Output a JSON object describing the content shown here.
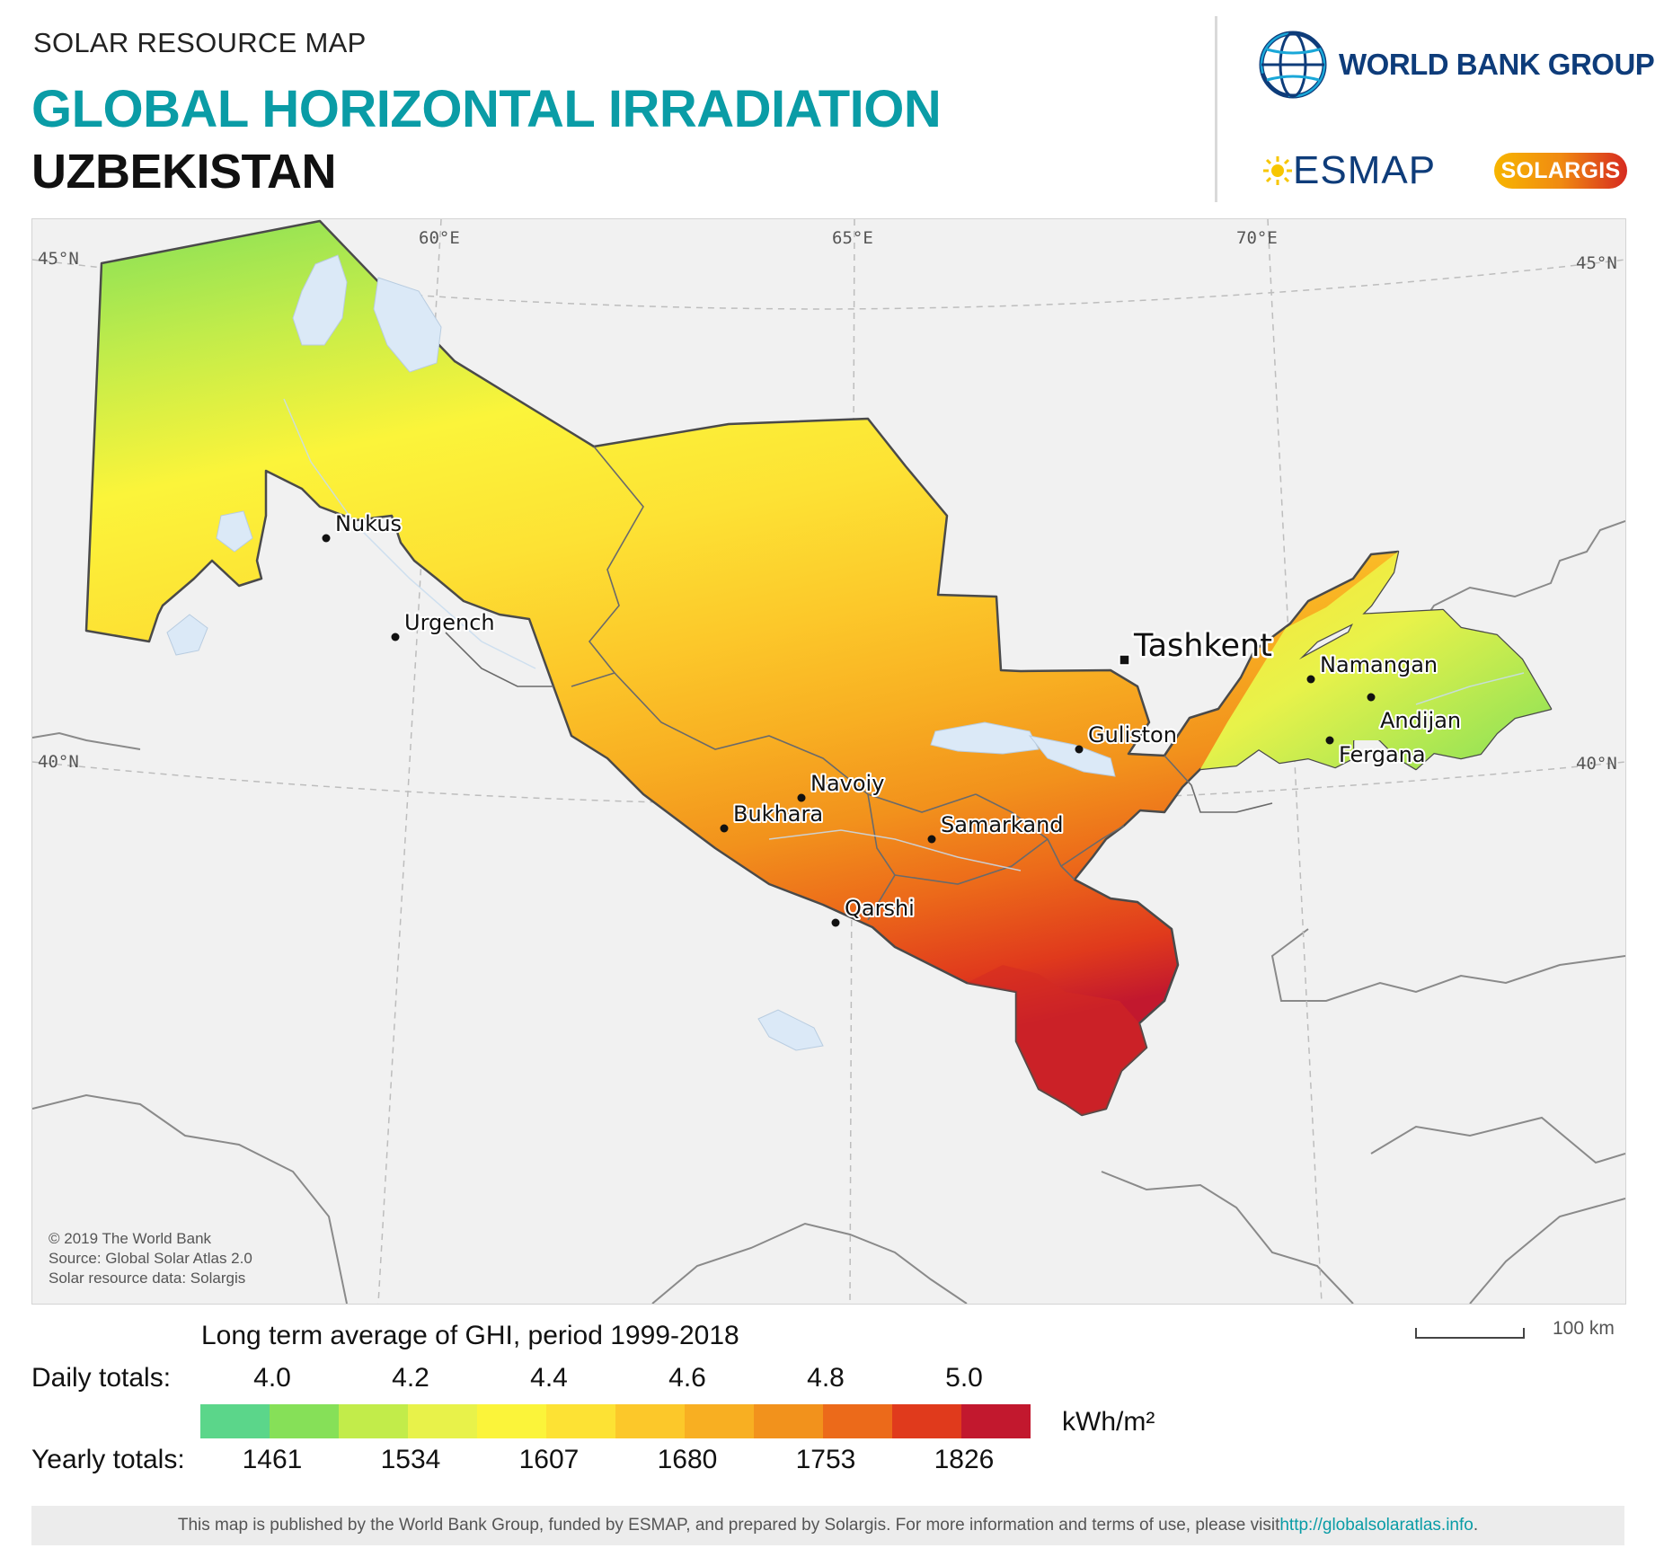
{
  "header": {
    "kicker": "SOLAR RESOURCE MAP",
    "title": "GLOBAL HORIZONTAL IRRADIATION",
    "country": "UZBEKISTAN"
  },
  "logos": {
    "world_bank": "WORLD BANK GROUP",
    "esmap": "ESMAP",
    "solargis": "SOLARGIS"
  },
  "map": {
    "meridians": [
      "60°E",
      "65°E",
      "70°E"
    ],
    "parallels": [
      "45°N",
      "40°N"
    ],
    "capital": "Tashkent",
    "cities": [
      "Nukus",
      "Urgench",
      "Navoiy",
      "Bukhara",
      "Samarkand",
      "Qarshi",
      "Guliston",
      "Namangan",
      "Andijan",
      "Fergana"
    ],
    "credits": [
      "© 2019 The World Bank",
      "Source: Global Solar Atlas 2.0",
      "Solar resource data: Solargis"
    ]
  },
  "scale": {
    "label": "100 km"
  },
  "legend": {
    "title": "Long term average of GHI, period 1999-2018",
    "daily_label": "Daily totals:",
    "yearly_label": "Yearly totals:",
    "daily_ticks": [
      "4.0",
      "4.2",
      "4.4",
      "4.6",
      "4.8",
      "5.0"
    ],
    "yearly_ticks": [
      "1461",
      "1534",
      "1607",
      "1680",
      "1753",
      "1826"
    ],
    "unit": "kWh/m²",
    "colors": [
      "#5bd68a",
      "#86e058",
      "#c2ec4a",
      "#e8f24a",
      "#fbf43a",
      "#fde234",
      "#fcc82a",
      "#f8af22",
      "#f2921c",
      "#ec6a1a",
      "#e03a1c",
      "#c2182e"
    ]
  },
  "footer": {
    "text": "This map is published by the World Bank Group, funded by ESMAP, and prepared by Solargis. For more information and terms of use, please visit ",
    "link": "http://globalsolaratlas.info",
    "end": "."
  }
}
